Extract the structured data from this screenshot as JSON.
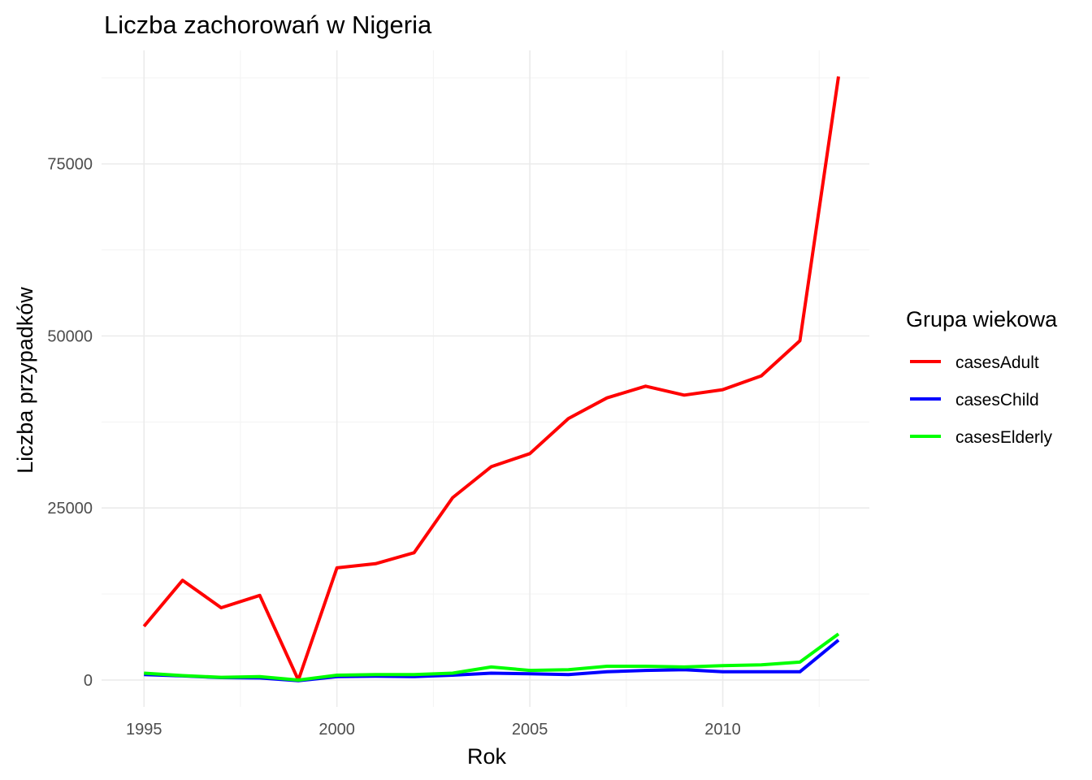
{
  "chart_data": {
    "type": "line",
    "title": "Liczba zachorowań w Nigeria",
    "xlabel": "Rok",
    "ylabel": "Liczba przypadków",
    "x": [
      1995,
      1996,
      1997,
      1998,
      1999,
      2000,
      2001,
      2002,
      2003,
      2004,
      2005,
      2006,
      2007,
      2008,
      2009,
      2010,
      2011,
      2012,
      2013
    ],
    "xlim": [
      1993.9,
      2013.8
    ],
    "ylim": [
      -3900,
      91500
    ],
    "x_ticks": [
      1995,
      2000,
      2005,
      2010
    ],
    "x_tick_labels": [
      "1995",
      "2000",
      "2005",
      "2010"
    ],
    "y_ticks": [
      0,
      25000,
      50000,
      75000
    ],
    "y_tick_labels": [
      "0",
      "25000",
      "50000",
      "75000"
    ],
    "grid": true,
    "legend": {
      "title": "Grupa wiekowa",
      "position": "right"
    },
    "series": [
      {
        "name": "casesAdult",
        "color": "#ff0000",
        "values": [
          7800,
          14500,
          10500,
          12300,
          0,
          16300,
          16900,
          18500,
          26500,
          31000,
          32900,
          38000,
          41000,
          42700,
          41400,
          42200,
          44200,
          49300,
          87700
        ]
      },
      {
        "name": "casesChild",
        "color": "#0000ff",
        "values": [
          800,
          600,
          350,
          300,
          -100,
          500,
          550,
          500,
          700,
          1000,
          900,
          800,
          1200,
          1400,
          1500,
          1200,
          1200,
          1200,
          5800
        ]
      },
      {
        "name": "casesElderly",
        "color": "#00ff00",
        "values": [
          1000,
          650,
          400,
          500,
          0,
          700,
          800,
          800,
          1000,
          1900,
          1400,
          1500,
          2000,
          2000,
          1900,
          2100,
          2200,
          2600,
          6700
        ]
      }
    ]
  }
}
